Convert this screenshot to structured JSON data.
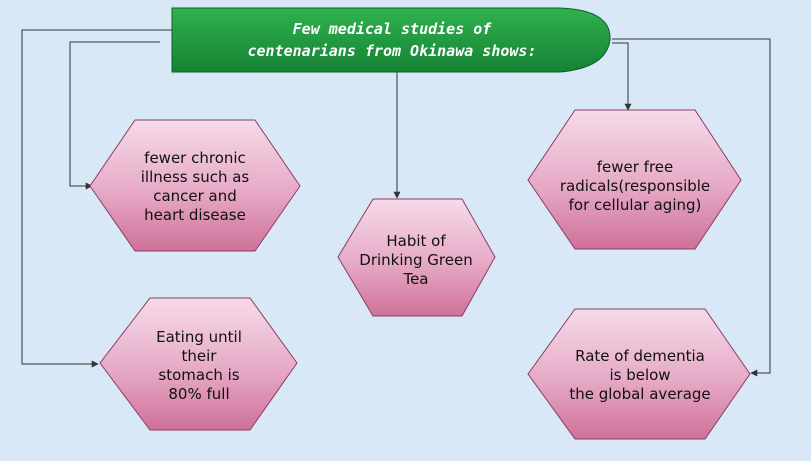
{
  "title": {
    "lines": [
      "Few medical studies of",
      "centenarians from Okinawa shows:"
    ]
  },
  "nodes": [
    {
      "id": "chronic-illness",
      "lines": [
        "fewer chronic",
        "illness such as",
        "cancer and",
        "heart disease"
      ]
    },
    {
      "id": "green-tea",
      "lines": [
        "Habit of",
        "Drinking Green",
        "Tea"
      ]
    },
    {
      "id": "free-radicals",
      "lines": [
        "fewer free",
        "radicals(responsible",
        "for cellular aging)"
      ]
    },
    {
      "id": "eating",
      "lines": [
        "Eating until",
        "their",
        "stomach is",
        "80% full"
      ]
    },
    {
      "id": "dementia",
      "lines": [
        "Rate of dementia",
        "is below",
        "the global average"
      ]
    }
  ],
  "colors": {
    "background": "#d9e8f7",
    "title_fill": "#1f9e3f",
    "hex_top": "#f4d7e6",
    "hex_bottom": "#d1789f",
    "hex_border": "#8a3d60",
    "arrow": "#333333"
  }
}
